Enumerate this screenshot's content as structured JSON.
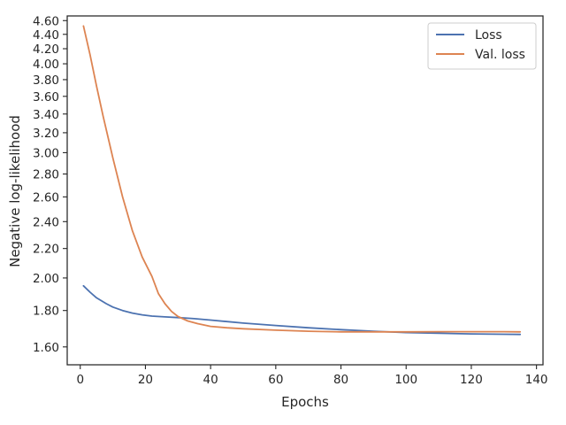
{
  "chart_data": {
    "type": "line",
    "xlabel": "Epochs",
    "ylabel": "Negative log-likelihood",
    "xlim": [
      -4,
      142
    ],
    "ylim": [
      1.51,
      4.67
    ],
    "y_scale": "log",
    "x_ticks": [
      0,
      20,
      40,
      60,
      80,
      100,
      120,
      140
    ],
    "y_ticks": [
      1.6,
      1.8,
      2.0,
      2.2,
      2.4,
      2.6,
      2.8,
      3.0,
      3.2,
      3.4,
      3.6,
      3.8,
      4.0,
      4.2,
      4.4,
      4.6
    ],
    "y_tick_labels": [
      "1.60",
      "1.80",
      "2.00",
      "2.20",
      "2.40",
      "2.60",
      "2.80",
      "3.00",
      "3.20",
      "3.40",
      "3.60",
      "3.80",
      "4.00",
      "4.20",
      "4.40",
      "4.60"
    ],
    "legend_position": "top-right",
    "grid": false,
    "series": [
      {
        "name": "Loss",
        "color": "#4c72b0",
        "x": [
          1,
          3,
          5,
          8,
          10,
          13,
          16,
          19,
          22,
          26,
          30,
          35,
          40,
          50,
          60,
          70,
          80,
          90,
          100,
          110,
          120,
          130,
          135
        ],
        "y": [
          1.95,
          1.91,
          1.875,
          1.84,
          1.82,
          1.8,
          1.785,
          1.775,
          1.768,
          1.763,
          1.759,
          1.753,
          1.745,
          1.728,
          1.715,
          1.702,
          1.692,
          1.683,
          1.676,
          1.672,
          1.669,
          1.667,
          1.666
        ]
      },
      {
        "name": "Val. loss",
        "color": "#dd8452",
        "x": [
          1,
          3,
          5,
          7,
          10,
          13,
          16,
          19,
          22,
          24,
          26,
          28,
          30,
          33,
          36,
          40,
          45,
          50,
          60,
          70,
          80,
          90,
          100,
          110,
          120,
          130,
          135
        ],
        "y": [
          4.52,
          4.12,
          3.72,
          3.38,
          2.95,
          2.6,
          2.33,
          2.14,
          2.01,
          1.9,
          1.84,
          1.795,
          1.765,
          1.74,
          1.725,
          1.71,
          1.702,
          1.697,
          1.689,
          1.683,
          1.68,
          1.68,
          1.68,
          1.681,
          1.681,
          1.681,
          1.68
        ]
      }
    ]
  }
}
